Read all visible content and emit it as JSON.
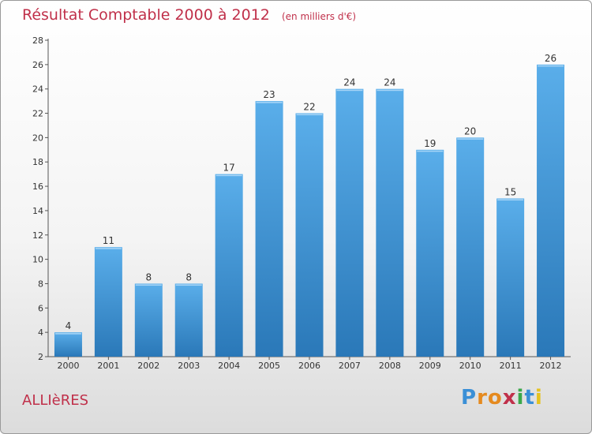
{
  "chart_data": {
    "type": "bar",
    "title": "Résultat Comptable 2000 à 2012",
    "unit": "(en milliers d'€)",
    "categories": [
      "2000",
      "2001",
      "2002",
      "2003",
      "2004",
      "2005",
      "2006",
      "2007",
      "2008",
      "2009",
      "2010",
      "2011",
      "2012"
    ],
    "values": [
      4,
      11,
      8,
      8,
      17,
      23,
      22,
      24,
      24,
      19,
      20,
      15,
      26
    ],
    "ylim": [
      2,
      28
    ],
    "yticks": [
      2,
      4,
      6,
      8,
      10,
      12,
      14,
      16,
      18,
      20,
      22,
      24,
      26,
      28
    ],
    "grid": false,
    "bar_color_top": "#5aaeea",
    "bar_color_bottom": "#2a78b8"
  },
  "footer": {
    "commune": "ALLIèRES",
    "logo_letters": [
      {
        "ch": "P",
        "color": "#3a8fd6"
      },
      {
        "ch": "r",
        "color": "#e58a1f"
      },
      {
        "ch": "o",
        "color": "#e58a1f"
      },
      {
        "ch": "x",
        "color": "#c0304a"
      },
      {
        "ch": "i",
        "color": "#3aa84a"
      },
      {
        "ch": "t",
        "color": "#3a8fd6"
      },
      {
        "ch": "i",
        "color": "#e5c21f"
      }
    ]
  }
}
